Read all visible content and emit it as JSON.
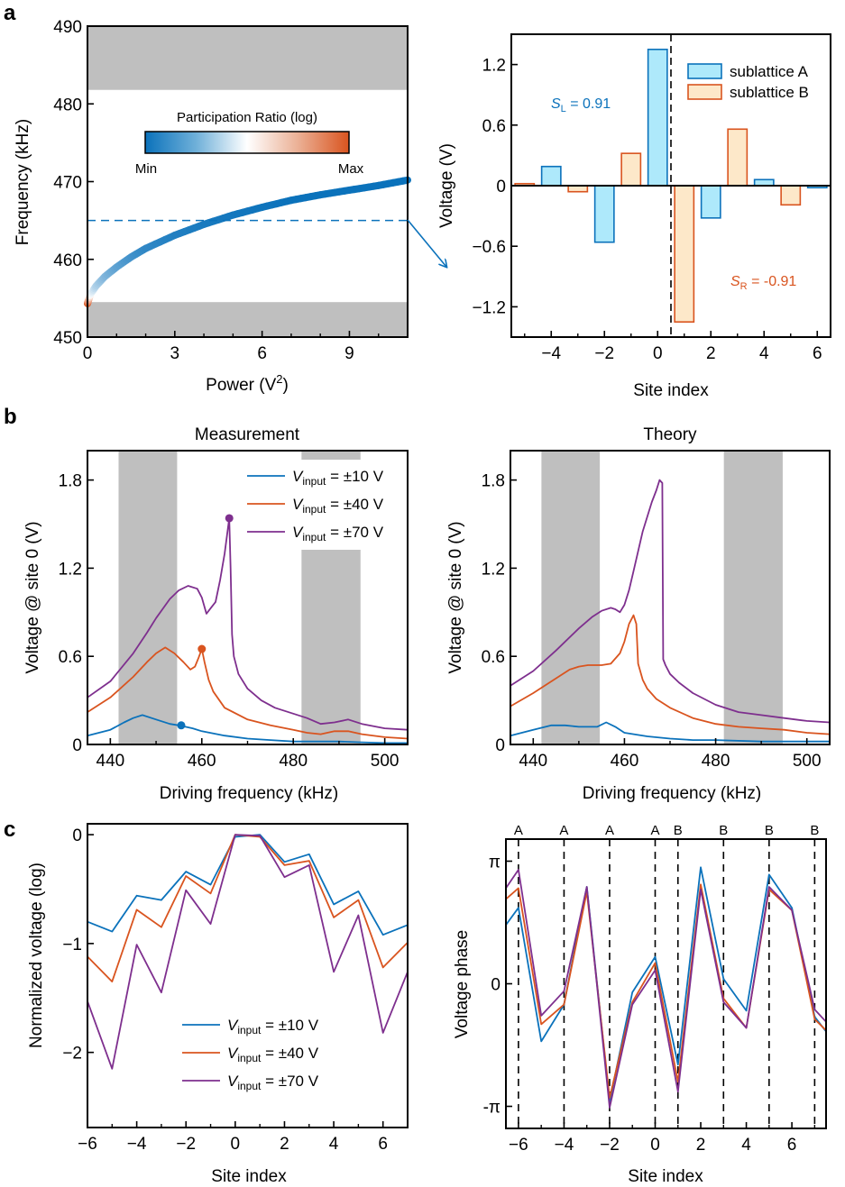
{
  "colors": {
    "blue": "#0b72bb",
    "orange": "#d9541f",
    "purple": "#7e2f8e",
    "band": "#bfbfbf",
    "fill_a": "#aee9fb",
    "fill_b": "#fde8c9"
  },
  "panel_letters": [
    "a",
    "b",
    "c"
  ],
  "chart_data": [
    {
      "id": "a-left",
      "type": "line",
      "xlabel": "Power (V",
      "xlabel_sup": "2",
      "xlabel_end": ")",
      "ylabel": "Frequency (kHz)",
      "xlim": [
        0,
        11
      ],
      "ylim": [
        450,
        490
      ],
      "xticks": [
        "0",
        "3",
        "6",
        "9"
      ],
      "xtick_values": [
        0,
        3,
        6,
        9
      ],
      "yticks": [
        "450",
        "460",
        "470",
        "480",
        "490"
      ],
      "ytick_values": [
        450,
        460,
        470,
        480,
        490
      ],
      "bands": [
        [
          450,
          454.5
        ],
        [
          481.8,
          490
        ]
      ],
      "dashed_line_y": 465,
      "colorbar": {
        "title": "Participation Ratio (log)",
        "min_label": "Min",
        "max_label": "Max"
      },
      "curve": {
        "x": [
          0,
          0.1,
          0.3,
          0.6,
          1,
          1.5,
          2,
          3,
          4,
          5,
          6,
          7,
          8,
          9,
          10,
          11
        ],
        "y": [
          454.3,
          455.5,
          456.6,
          457.8,
          459.0,
          460.3,
          461.4,
          463.1,
          464.5,
          465.7,
          466.7,
          467.6,
          468.3,
          468.9,
          469.5,
          470.2
        ],
        "participation_ratio_norm": [
          1.0,
          0.5,
          0.35,
          0.25,
          0.18,
          0.12,
          0.08,
          0.05,
          0.03,
          0.02,
          0.01,
          0.0,
          0.0,
          0.0,
          0.0,
          0.0
        ]
      }
    },
    {
      "id": "a-right",
      "type": "bar",
      "xlabel": "Site index",
      "ylabel": "Voltage (V)",
      "xlim": [
        -5.5,
        6.5
      ],
      "ylim": [
        -1.5,
        1.5
      ],
      "xticks": [
        "−4",
        "−2",
        "0",
        "2",
        "4",
        "6"
      ],
      "xtick_values": [
        -4,
        -2,
        0,
        2,
        4,
        6
      ],
      "yticks": [
        "−1.2",
        "−0.6",
        "0",
        "0.6",
        "1.2"
      ],
      "ytick_values": [
        -1.2,
        -0.6,
        0,
        0.6,
        1.2
      ],
      "divider_x": 0.5,
      "legend": [
        "sublattice A",
        "sublattice B"
      ],
      "annotations": [
        {
          "symbol": "S",
          "sub": "L",
          "text": " = 0.91"
        },
        {
          "symbol": "S",
          "sub": "R",
          "text": " = -0.91"
        }
      ],
      "x": [
        -5,
        -4,
        -3,
        -2,
        -1,
        0,
        1,
        2,
        3,
        4,
        5,
        6
      ],
      "sublattice": [
        "B",
        "A",
        "B",
        "A",
        "B",
        "A",
        "B",
        "A",
        "B",
        "A",
        "B",
        "A"
      ],
      "values": [
        0.02,
        0.19,
        -0.06,
        -0.56,
        0.32,
        1.35,
        -1.35,
        -0.32,
        0.56,
        0.06,
        -0.19,
        -0.02
      ]
    },
    {
      "id": "b-left",
      "type": "line",
      "title": "Measurement",
      "xlabel": "Driving frequency (kHz)",
      "ylabel": "Voltage @ site 0 (V)",
      "xlim": [
        435,
        505
      ],
      "ylim": [
        0,
        2.0
      ],
      "xticks": [
        "440",
        "460",
        "480",
        "500"
      ],
      "xtick_values": [
        440,
        460,
        480,
        500
      ],
      "yticks": [
        "0",
        "0.6",
        "1.2",
        "1.8"
      ],
      "ytick_values": [
        0,
        0.6,
        1.2,
        1.8
      ],
      "bands": [
        [
          441.8,
          454.6
        ],
        [
          481.8,
          494.7
        ]
      ],
      "legend_label": "V",
      "legend_sub": "input",
      "series": [
        {
          "name": "±10 V",
          "legend_text": " = ±10 V",
          "color_key": "blue",
          "x": [
            435,
            440,
            443,
            445,
            447,
            450,
            453,
            455,
            458,
            460,
            465,
            470,
            475,
            480,
            485,
            490,
            495,
            500,
            505
          ],
          "y": [
            0.06,
            0.1,
            0.15,
            0.18,
            0.2,
            0.17,
            0.14,
            0.13,
            0.11,
            0.09,
            0.06,
            0.04,
            0.03,
            0.02,
            0.02,
            0.02,
            0.015,
            0.01,
            0.01
          ],
          "marker": [
            455.5,
            0.13
          ]
        },
        {
          "name": "±40 V",
          "legend_text": " = ±40 V",
          "color_key": "orange",
          "x": [
            435,
            440,
            445,
            448,
            450,
            452,
            454,
            456,
            457.5,
            458.5,
            459.3,
            460,
            460.6,
            461.5,
            462.5,
            465,
            470,
            475,
            480,
            483,
            486,
            489,
            492,
            495,
            500,
            505
          ],
          "y": [
            0.22,
            0.32,
            0.46,
            0.56,
            0.62,
            0.66,
            0.62,
            0.56,
            0.51,
            0.53,
            0.59,
            0.65,
            0.56,
            0.44,
            0.36,
            0.25,
            0.17,
            0.13,
            0.1,
            0.08,
            0.07,
            0.09,
            0.09,
            0.07,
            0.05,
            0.04
          ],
          "marker": [
            460,
            0.65
          ]
        },
        {
          "name": "±70 V",
          "legend_text": " = ±70 V",
          "color_key": "purple",
          "x": [
            435,
            440,
            445,
            448,
            450,
            453,
            455,
            457,
            459,
            460,
            461,
            462,
            463,
            464,
            465,
            466,
            466.3,
            466.6,
            467,
            468,
            470,
            473,
            476,
            480,
            483,
            486,
            489,
            492,
            495,
            500,
            505
          ],
          "y": [
            0.32,
            0.43,
            0.62,
            0.76,
            0.86,
            0.99,
            1.05,
            1.08,
            1.06,
            1.0,
            0.89,
            0.93,
            0.97,
            1.12,
            1.3,
            1.54,
            1.2,
            0.75,
            0.6,
            0.48,
            0.38,
            0.3,
            0.25,
            0.21,
            0.18,
            0.14,
            0.15,
            0.17,
            0.14,
            0.11,
            0.1
          ],
          "marker": [
            466,
            1.54
          ]
        }
      ]
    },
    {
      "id": "b-right",
      "type": "line",
      "title": "Theory",
      "xlabel": "Driving frequency (kHz)",
      "ylabel": "Voltage @ site 0 (V)",
      "xlim": [
        435,
        505
      ],
      "ylim": [
        0,
        2.0
      ],
      "xticks": [
        "440",
        "460",
        "480",
        "500"
      ],
      "xtick_values": [
        440,
        460,
        480,
        500
      ],
      "yticks": [
        "0",
        "0.6",
        "1.2",
        "1.8"
      ],
      "ytick_values": [
        0,
        0.6,
        1.2,
        1.8
      ],
      "bands": [
        [
          441.8,
          454.6
        ],
        [
          481.8,
          494.7
        ]
      ],
      "series": [
        {
          "name": "±10 V",
          "color_key": "blue",
          "x": [
            435,
            440,
            444,
            447,
            450,
            454,
            456,
            458,
            460,
            465,
            470,
            475,
            480,
            490,
            505
          ],
          "y": [
            0.06,
            0.1,
            0.13,
            0.13,
            0.12,
            0.12,
            0.15,
            0.12,
            0.08,
            0.055,
            0.04,
            0.03,
            0.03,
            0.02,
            0.02
          ]
        },
        {
          "name": "±40 V",
          "color_key": "orange",
          "x": [
            435,
            440,
            445,
            448,
            450,
            452,
            455,
            457,
            459,
            460,
            461,
            462,
            462.6,
            463,
            464,
            465,
            467,
            470,
            475,
            480,
            485,
            490,
            495,
            500,
            505
          ],
          "y": [
            0.26,
            0.35,
            0.45,
            0.51,
            0.53,
            0.54,
            0.54,
            0.55,
            0.62,
            0.7,
            0.82,
            0.88,
            0.82,
            0.55,
            0.44,
            0.38,
            0.31,
            0.25,
            0.18,
            0.14,
            0.12,
            0.11,
            0.1,
            0.08,
            0.07
          ]
        },
        {
          "name": "±70 V",
          "color_key": "purple",
          "x": [
            435,
            440,
            445,
            450,
            453,
            455,
            457,
            458,
            459,
            460,
            461,
            462,
            464,
            466,
            467,
            467.7,
            468.3,
            468.5,
            469,
            470,
            472,
            475,
            480,
            485,
            490,
            495,
            500,
            505
          ],
          "y": [
            0.4,
            0.5,
            0.64,
            0.79,
            0.87,
            0.91,
            0.93,
            0.92,
            0.9,
            0.95,
            1.05,
            1.18,
            1.45,
            1.65,
            1.73,
            1.8,
            1.78,
            0.58,
            0.54,
            0.48,
            0.42,
            0.35,
            0.27,
            0.22,
            0.2,
            0.18,
            0.16,
            0.15
          ]
        }
      ]
    },
    {
      "id": "c-left",
      "type": "line",
      "xlabel": "Site index",
      "ylabel": "Normalized voltage (log)",
      "xlim": [
        -6,
        7
      ],
      "ylim": [
        -2.69,
        0.1
      ],
      "xticks": [
        "−6",
        "−4",
        "−2",
        "0",
        "2",
        "4",
        "6"
      ],
      "xtick_values": [
        -6,
        -4,
        -2,
        0,
        2,
        4,
        6
      ],
      "yticks": [
        "−2",
        "−1",
        "0"
      ],
      "ytick_values": [
        -2,
        -1,
        0
      ],
      "legend_label": "V",
      "legend_sub": "input",
      "x": [
        -6,
        -5,
        -4,
        -3,
        -2,
        -1,
        0,
        1,
        2,
        3,
        4,
        5,
        6,
        7
      ],
      "series": [
        {
          "name": "±10 V",
          "legend_text": " = ±10 V",
          "color_key": "blue",
          "y": [
            -0.8,
            -0.89,
            -0.56,
            -0.6,
            -0.34,
            -0.46,
            -0.02,
            0.0,
            -0.25,
            -0.18,
            -0.64,
            -0.52,
            -0.92,
            -0.83
          ]
        },
        {
          "name": "±40 V",
          "legend_text": " = ±40 V",
          "color_key": "orange",
          "y": [
            -1.12,
            -1.35,
            -0.69,
            -0.85,
            -0.38,
            -0.54,
            0.0,
            -0.02,
            -0.28,
            -0.24,
            -0.76,
            -0.6,
            -1.22,
            -0.99
          ]
        },
        {
          "name": "±70 V",
          "legend_text": " = ±70 V",
          "color_key": "purple",
          "y": [
            -1.53,
            -2.15,
            -1.01,
            -1.45,
            -0.51,
            -0.82,
            0.0,
            -0.01,
            -0.39,
            -0.28,
            -1.26,
            -0.74,
            -1.82,
            -1.26
          ]
        }
      ]
    },
    {
      "id": "c-right",
      "type": "line",
      "xlabel": "Site index",
      "ylabel": "Voltage phase",
      "xlim": [
        -6.55,
        7.5
      ],
      "ylim_pi": [
        -1.18,
        1.18
      ],
      "xticks": [
        "−6",
        "−4",
        "−2",
        "0",
        "2",
        "4",
        "6"
      ],
      "xtick_values": [
        -6,
        -4,
        -2,
        0,
        2,
        4,
        6
      ],
      "yticks": [
        "-π",
        "0",
        "π"
      ],
      "ytick_values_pi": [
        -1,
        0,
        1
      ],
      "sublattice_markers": [
        {
          "x": -6,
          "label": "A"
        },
        {
          "x": -4,
          "label": "A"
        },
        {
          "x": -2,
          "label": "A"
        },
        {
          "x": 0,
          "label": "A"
        },
        {
          "x": 1,
          "label": "B"
        },
        {
          "x": 3,
          "label": "B"
        },
        {
          "x": 5,
          "label": "B"
        },
        {
          "x": 7,
          "label": "B"
        }
      ],
      "x": [
        -6.55,
        -6,
        -5,
        -4,
        -3,
        -2,
        -1,
        0,
        1,
        2,
        3,
        4,
        5,
        6,
        7,
        7.5
      ],
      "series": [
        {
          "name": "±10 V",
          "color_key": "blue",
          "y_pi": [
            0.48,
            0.62,
            -0.47,
            -0.17,
            0.79,
            -0.96,
            -0.07,
            0.22,
            -0.66,
            0.95,
            0.04,
            -0.22,
            0.89,
            0.62,
            -0.27,
            -0.39
          ]
        },
        {
          "name": "±40 V",
          "color_key": "orange",
          "y_pi": [
            0.69,
            0.78,
            -0.33,
            -0.17,
            0.75,
            -0.93,
            -0.15,
            0.17,
            -0.8,
            0.81,
            -0.12,
            -0.36,
            0.77,
            0.6,
            -0.29,
            -0.38
          ]
        },
        {
          "name": "±70 V",
          "color_key": "purple",
          "y_pi": [
            0.78,
            0.93,
            -0.26,
            -0.06,
            0.79,
            -1.01,
            -0.17,
            0.11,
            -0.88,
            0.77,
            -0.15,
            -0.36,
            0.79,
            0.6,
            -0.21,
            -0.31
          ]
        }
      ]
    }
  ]
}
